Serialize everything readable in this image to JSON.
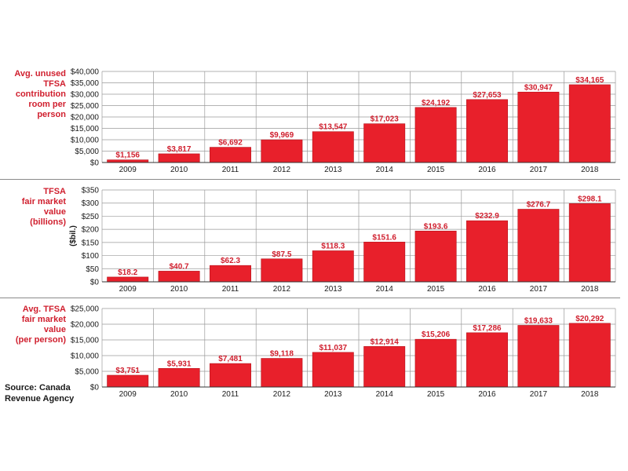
{
  "colors": {
    "bar": "#e8202b",
    "bar_edge": "#b5121b",
    "label": "#d01f2e",
    "grid": "#9a9a9a"
  },
  "source": "Source: Canada\nRevenue Agency",
  "chart_data": [
    {
      "type": "bar",
      "title": "Avg. unused\nTFSA contribution\nroom per person",
      "ylabel": "",
      "categories": [
        "2009",
        "2010",
        "2011",
        "2012",
        "2013",
        "2014",
        "2015",
        "2016",
        "2017",
        "2018"
      ],
      "values": [
        1156,
        3817,
        6692,
        9969,
        13547,
        17023,
        24192,
        27653,
        30947,
        34165
      ],
      "data_labels": [
        "$1,156",
        "$3,817",
        "$6,692",
        "$9,969",
        "$13,547",
        "$17,023",
        "$24,192",
        "$27,653",
        "$30,947",
        "$34,165"
      ],
      "ylim": [
        0,
        40000
      ],
      "yticks": [
        0,
        5000,
        10000,
        15000,
        20000,
        25000,
        30000,
        35000,
        40000
      ],
      "ytick_labels": [
        "$0",
        "$5,000",
        "$10,000",
        "$15,000",
        "$20,000",
        "$25,000",
        "$30,000",
        "$35,000",
        "$40,000"
      ],
      "grid": true
    },
    {
      "type": "bar",
      "title": "TFSA\nfair market value\n(billions)",
      "ylabel": "($bil.)",
      "categories": [
        "2009",
        "2010",
        "2011",
        "2012",
        "2013",
        "2014",
        "2015",
        "2016",
        "2017",
        "2018"
      ],
      "values": [
        18.2,
        40.7,
        62.3,
        87.5,
        118.3,
        151.6,
        193.6,
        232.9,
        276.7,
        298.1
      ],
      "data_labels": [
        "$18.2",
        "$40.7",
        "$62.3",
        "$87.5",
        "$118.3",
        "$151.6",
        "$193.6",
        "$232.9",
        "$276.7",
        "$298.1"
      ],
      "ylim": [
        0,
        350
      ],
      "yticks": [
        0,
        50,
        100,
        150,
        200,
        250,
        300,
        350
      ],
      "ytick_labels": [
        "$0",
        "$50",
        "$100",
        "$150",
        "$200",
        "$250",
        "$300",
        "$350"
      ],
      "grid": true
    },
    {
      "type": "bar",
      "title": "Avg. TFSA\nfair market value\n(per person)",
      "ylabel": "",
      "categories": [
        "2009",
        "2010",
        "2011",
        "2012",
        "2013",
        "2014",
        "2015",
        "2016",
        "2017",
        "2018"
      ],
      "values": [
        3751,
        5931,
        7481,
        9118,
        11037,
        12914,
        15206,
        17286,
        19633,
        20292
      ],
      "data_labels": [
        "$3,751",
        "$5,931",
        "$7,481",
        "$9,118",
        "$11,037",
        "$12,914",
        "$15,206",
        "$17,286",
        "$19,633",
        "$20,292"
      ],
      "ylim": [
        0,
        25000
      ],
      "yticks": [
        0,
        5000,
        10000,
        15000,
        20000,
        25000
      ],
      "ytick_labels": [
        "$0",
        "$5,000",
        "$10,000",
        "$15,000",
        "$20,000",
        "$25,000"
      ],
      "grid": true
    }
  ]
}
